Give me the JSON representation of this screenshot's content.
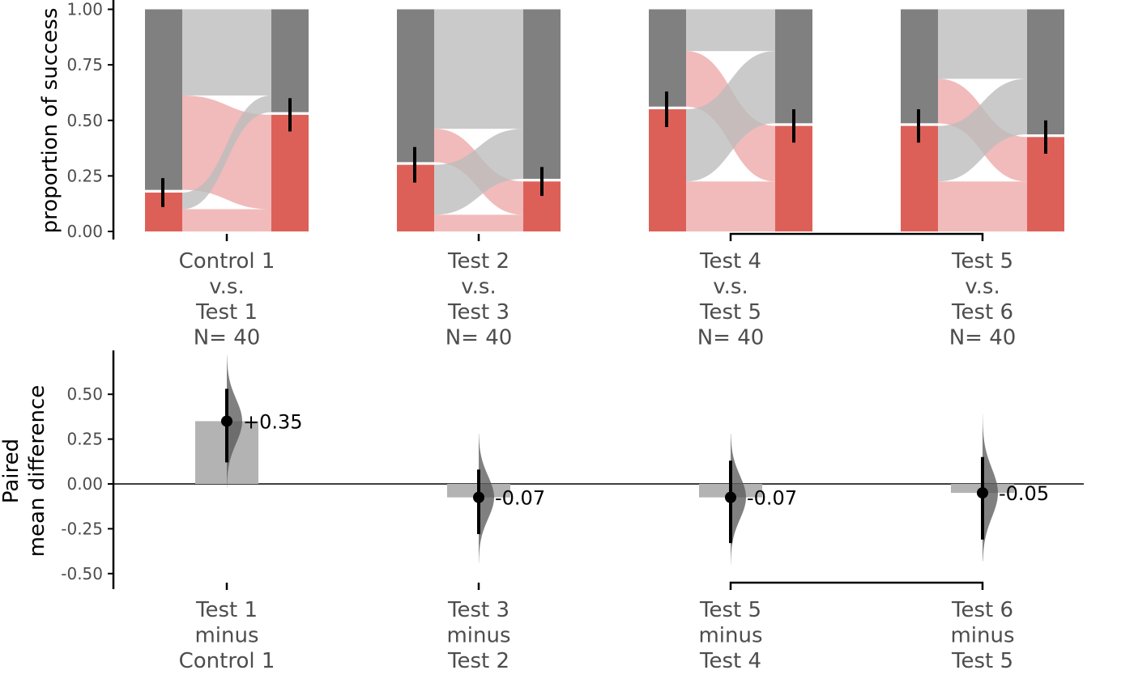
{
  "colors": {
    "failure": "#808080",
    "success": "#dd6058",
    "flow_failure": "#bdbdbd",
    "flow_success": "#eeaaaa",
    "delta_bar": "#b3b3b3",
    "axis": "#000000",
    "tick_text": "#4d4d4d"
  },
  "chart_data": [
    {
      "type": "bar",
      "subtype": "sankey-paired-proportions",
      "ylabel": "proportion of success",
      "ylim": [
        0,
        1
      ],
      "yticks": [
        "0.00",
        "0.25",
        "0.50",
        "0.75",
        "1.00"
      ],
      "grid": false,
      "groups": [
        {
          "label_lines": [
            "Control 1",
            "v.s.",
            "Test 1",
            "N= 40"
          ],
          "before": "Control 1",
          "after": "Test 1",
          "success_before": 0.175,
          "success_after": 0.525,
          "flows": {
            "success_to_success": 0.1,
            "success_to_failure": 0.075,
            "failure_to_success": 0.425,
            "failure_to_failure": 0.4
          },
          "ci_before": [
            0.11,
            0.24
          ],
          "ci_after": [
            0.45,
            0.6
          ]
        },
        {
          "label_lines": [
            "Test 2",
            "v.s.",
            "Test 3",
            "N= 40"
          ],
          "before": "Test 2",
          "after": "Test 3",
          "success_before": 0.3,
          "success_after": 0.225,
          "flows": {
            "success_to_success": 0.075,
            "success_to_failure": 0.225,
            "failure_to_success": 0.15,
            "failure_to_failure": 0.55
          },
          "ci_before": [
            0.22,
            0.38
          ],
          "ci_after": [
            0.16,
            0.29
          ]
        },
        {
          "label_lines": [
            "Test 4",
            "v.s.",
            "Test 5",
            "N= 40"
          ],
          "before": "Test 4",
          "after": "Test 5",
          "success_before": 0.55,
          "success_after": 0.475,
          "flows": {
            "success_to_success": 0.225,
            "success_to_failure": 0.325,
            "failure_to_success": 0.25,
            "failure_to_failure": 0.2
          },
          "ci_before": [
            0.47,
            0.63
          ],
          "ci_after": [
            0.4,
            0.55
          ]
        },
        {
          "label_lines": [
            "Test 5",
            "v.s.",
            "Test 6",
            "N= 40"
          ],
          "before": "Test 5",
          "after": "Test 6",
          "success_before": 0.475,
          "success_after": 0.425,
          "flows": {
            "success_to_success": 0.225,
            "success_to_failure": 0.25,
            "failure_to_success": 0.2,
            "failure_to_failure": 0.325
          },
          "ci_before": [
            0.4,
            0.55
          ],
          "ci_after": [
            0.35,
            0.5
          ]
        }
      ],
      "bracket": "Test 4 to Test 5"
    },
    {
      "type": "scatter",
      "subtype": "paired-mean-difference",
      "ylabel_lines": [
        "Paired",
        "mean difference"
      ],
      "ylim": [
        -0.55,
        0.75
      ],
      "yticks": [
        "-0.50",
        "-0.25",
        "0.00",
        "0.25",
        "0.50"
      ],
      "zero_line": true,
      "grid": false,
      "groups": [
        {
          "label_lines": [
            "Test 1",
            "minus",
            "Control 1"
          ],
          "estimate": 0.35,
          "ci": [
            0.12,
            0.53
          ],
          "dist_range": [
            -0.02,
            0.72
          ],
          "label": "+0.35"
        },
        {
          "label_lines": [
            "Test 3",
            "minus",
            "Test 2"
          ],
          "estimate": -0.075,
          "ci": [
            -0.28,
            0.08
          ],
          "dist_range": [
            -0.44,
            0.28
          ],
          "label": "-0.07"
        },
        {
          "label_lines": [
            "Test 5",
            "minus",
            "Test 4"
          ],
          "estimate": -0.075,
          "ci": [
            -0.33,
            0.13
          ],
          "dist_range": [
            -0.45,
            0.28
          ],
          "label": "-0.07"
        },
        {
          "label_lines": [
            "Test 6",
            "minus",
            "Test 5"
          ],
          "estimate": -0.05,
          "ci": [
            -0.31,
            0.15
          ],
          "dist_range": [
            -0.43,
            0.39
          ],
          "label": "-0.05"
        }
      ],
      "bracket": "Test 5 minus Test 4 to Test 6 minus Test 5"
    }
  ]
}
